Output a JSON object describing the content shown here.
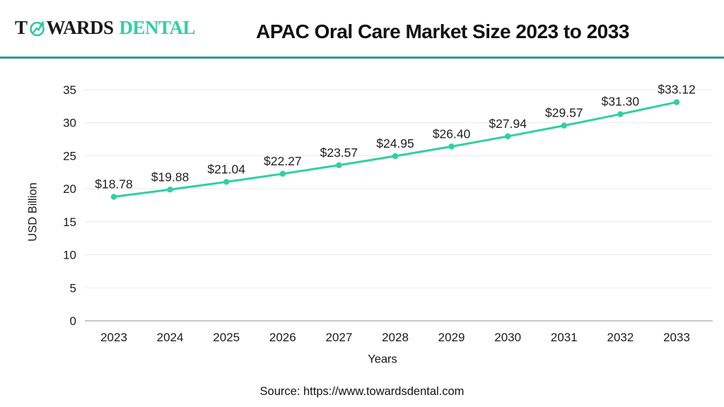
{
  "header": {
    "logo_part1": "T",
    "logo_part2": "WARDS",
    "logo_part3": "DENTAL",
    "title": "APAC Oral Care Market Size 2023 to 2033"
  },
  "chart_data": {
    "type": "line",
    "title": "APAC Oral Care Market Size 2023 to 2033",
    "categories": [
      "2023",
      "2024",
      "2025",
      "2026",
      "2027",
      "2028",
      "2029",
      "2030",
      "2031",
      "2032",
      "2033"
    ],
    "values": [
      18.78,
      19.88,
      21.04,
      22.27,
      23.57,
      24.95,
      26.4,
      27.94,
      29.57,
      31.3,
      33.12
    ],
    "point_labels": [
      "$18.78",
      "$19.88",
      "$21.04",
      "$22.27",
      "$23.57",
      "$24.95",
      "$26.40",
      "$27.94",
      "$29.57",
      "$31.30",
      "$33.12"
    ],
    "xlabel": "Years",
    "ylabel": "USD Billion",
    "ylim": [
      0,
      35
    ],
    "yticks": [
      0,
      5,
      10,
      15,
      20,
      25,
      30,
      35
    ],
    "grid": "horizontal",
    "legend": "none",
    "line_color": "#30d0a1",
    "marker_color": "#30d0a1",
    "gridline_color": "#eaeaea",
    "axis_line_color": "#b5b5b5",
    "label_color": "#1f1f1f"
  },
  "footer": {
    "source": "Source: https://www.towardsdental.com"
  },
  "colors": {
    "accent": "#30d0a1",
    "divider": "#2e9e8e",
    "logo_text": "#1b1b1b",
    "logo_dental": "#2ed0a5"
  }
}
